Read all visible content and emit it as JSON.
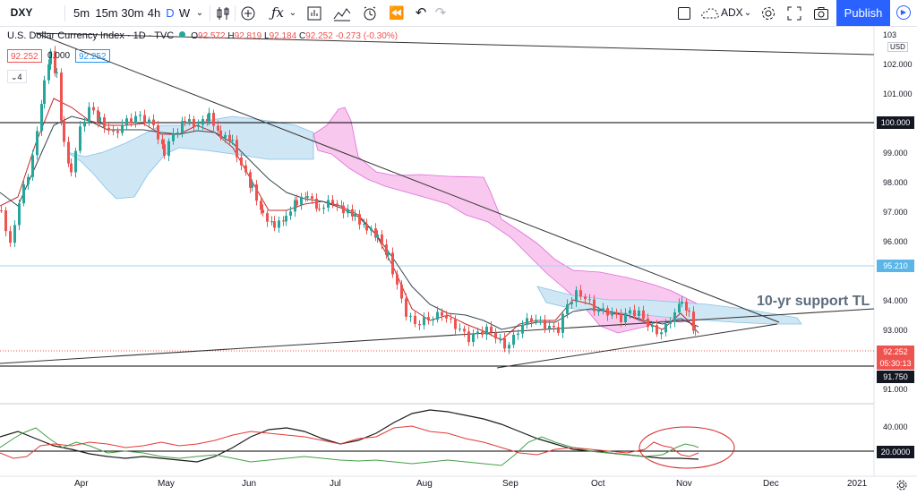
{
  "toolbar": {
    "symbol": "DXY",
    "intervals": [
      {
        "label": "5m",
        "active": false
      },
      {
        "label": "15m",
        "active": false
      },
      {
        "label": "30m",
        "active": false
      },
      {
        "label": "4h",
        "active": false
      },
      {
        "label": "D",
        "active": true
      },
      {
        "label": "W",
        "active": false
      }
    ],
    "indicator": "ADX",
    "publish_label": "Publish"
  },
  "legend": {
    "title": "U.S. Dollar Currency Index · 1D · TVC",
    "ohlc": {
      "o": "92.572",
      "h": "92.819",
      "l": "92.184",
      "c": "92.252",
      "chg": "-0.273 (-0.30%)"
    },
    "values": [
      "92.252",
      "0.000",
      "92.252"
    ],
    "collapse_count": "4"
  },
  "price_axis": {
    "currency": "USD",
    "ticks": [
      "102.000",
      "101.000",
      "99.000",
      "98.000",
      "97.000",
      "96.000",
      "94.000",
      "93.000",
      "91.000"
    ],
    "top_partial": "103"
  },
  "price_tags": {
    "level_100": "100.000",
    "level_95": "95.210",
    "current": "92.252",
    "countdown": "05:30:13",
    "level_91": "91.750"
  },
  "adx_axis": {
    "ticks": [
      "40.000"
    ],
    "level": "20.0000"
  },
  "date_axis": [
    "Apr",
    "May",
    "Jun",
    "Jul",
    "Aug",
    "Sep",
    "Oct",
    "Nov",
    "Dec",
    "2021"
  ],
  "annotation": "10-yr support TL",
  "colors": {
    "accent": "#2962ff",
    "up": "#26a69a",
    "down": "#ef5350",
    "cloud_bull": "#c9e4f3",
    "cloud_bear": "#f7c6ec"
  }
}
